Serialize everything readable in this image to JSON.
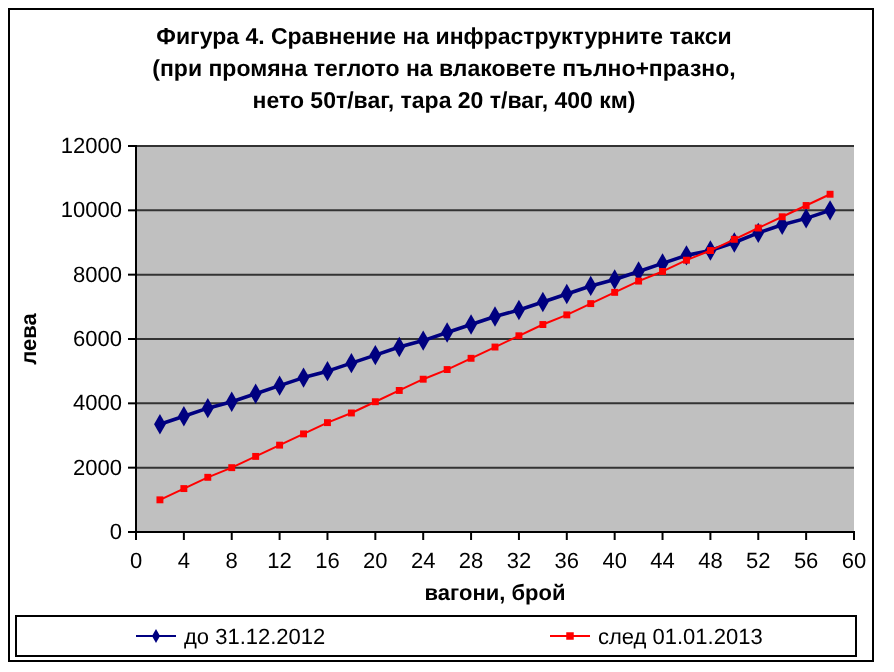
{
  "chart_data": {
    "type": "line",
    "title": "Фигура 4. Сравнение на инфраструктурните такси\n(при промяна теглото на влаковете пълно+празно,\nнето 50т/ваг, тара 20 т/ваг, 400 км)",
    "xlabel": "вагони, брой",
    "ylabel": "лева",
    "x": [
      2,
      4,
      6,
      8,
      10,
      12,
      14,
      16,
      18,
      20,
      22,
      24,
      26,
      28,
      30,
      32,
      34,
      36,
      38,
      40,
      42,
      44,
      46,
      48,
      50,
      52,
      54,
      56,
      58
    ],
    "series": [
      {
        "name": "до 31.12.2012",
        "color": "#000080",
        "marker": "diamond",
        "values": [
          3350,
          3600,
          3850,
          4050,
          4300,
          4550,
          4800,
          5000,
          5250,
          5500,
          5750,
          5950,
          6200,
          6450,
          6700,
          6900,
          7150,
          7400,
          7650,
          7850,
          8100,
          8350,
          8600,
          8750,
          9000,
          9300,
          9550,
          9750,
          10000
        ]
      },
      {
        "name": "след 01.01.2013",
        "color": "#ff0000",
        "marker": "square",
        "values": [
          1000,
          1350,
          1700,
          2000,
          2350,
          2700,
          3050,
          3400,
          3700,
          4050,
          4400,
          4750,
          5050,
          5400,
          5750,
          6100,
          6450,
          6750,
          7100,
          7450,
          7800,
          8100,
          8450,
          8750,
          9100,
          9450,
          9800,
          10150,
          10500
        ]
      }
    ],
    "xlim": [
      0,
      60
    ],
    "xticks": [
      0,
      4,
      8,
      12,
      16,
      20,
      24,
      28,
      32,
      36,
      40,
      44,
      48,
      52,
      56,
      60
    ],
    "ylim": [
      0,
      12000
    ],
    "yticks": [
      0,
      2000,
      4000,
      6000,
      8000,
      10000,
      12000
    ],
    "grid": "y",
    "legend": "bottom"
  }
}
